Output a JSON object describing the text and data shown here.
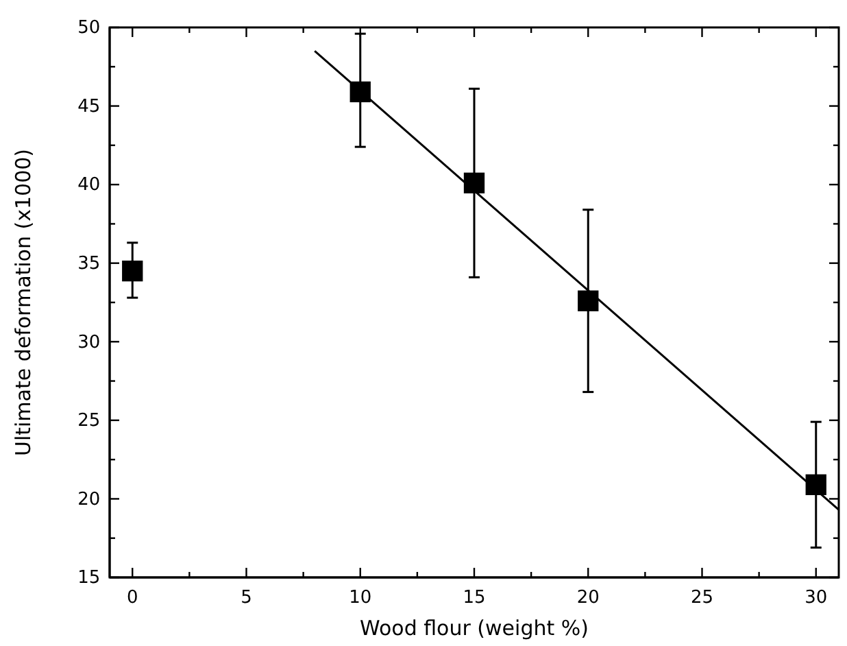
{
  "chart_data": {
    "type": "scatter",
    "xlabel": "Wood flour (weight %)",
    "ylabel": "Ultimate deformation (x1000)",
    "xlim": [
      -1,
      31
    ],
    "ylim": [
      15,
      50
    ],
    "xticks": [
      0,
      {
        "value": 2.5,
        "label": null
      },
      5,
      {
        "value": 7.5,
        "label": null
      },
      10,
      {
        "value": 12.5,
        "label": null
      },
      15,
      {
        "value": 17.5,
        "label": null
      },
      20,
      {
        "value": 22.5,
        "label": null
      },
      25,
      {
        "value": 27.5,
        "label": null
      },
      30
    ],
    "yticks": [
      15,
      {
        "value": 17.5,
        "label": null
      },
      20,
      {
        "value": 22.5,
        "label": null
      },
      25,
      {
        "value": 27.5,
        "label": null
      },
      30,
      {
        "value": 32.5,
        "label": null
      },
      35,
      {
        "value": 37.5,
        "label": null
      },
      40,
      {
        "value": 42.5,
        "label": null
      },
      45,
      {
        "value": 47.5,
        "label": null
      },
      50
    ],
    "grid": false,
    "series": [
      {
        "marker": "square",
        "color": "#000000",
        "x": [
          0,
          10,
          15,
          20,
          30
        ],
        "values": [
          34.5,
          45.9,
          40.1,
          32.6,
          20.9
        ],
        "errors": [
          [
            32.8,
            36.3
          ],
          [
            42.4,
            49.6
          ],
          [
            34.1,
            46.1
          ],
          [
            26.8,
            38.4
          ],
          [
            16.9,
            24.9
          ]
        ]
      },
      {
        "type": "line",
        "color": "#000000",
        "x": [
          8,
          31
        ],
        "values": [
          48.5,
          19.3
        ]
      }
    ]
  }
}
